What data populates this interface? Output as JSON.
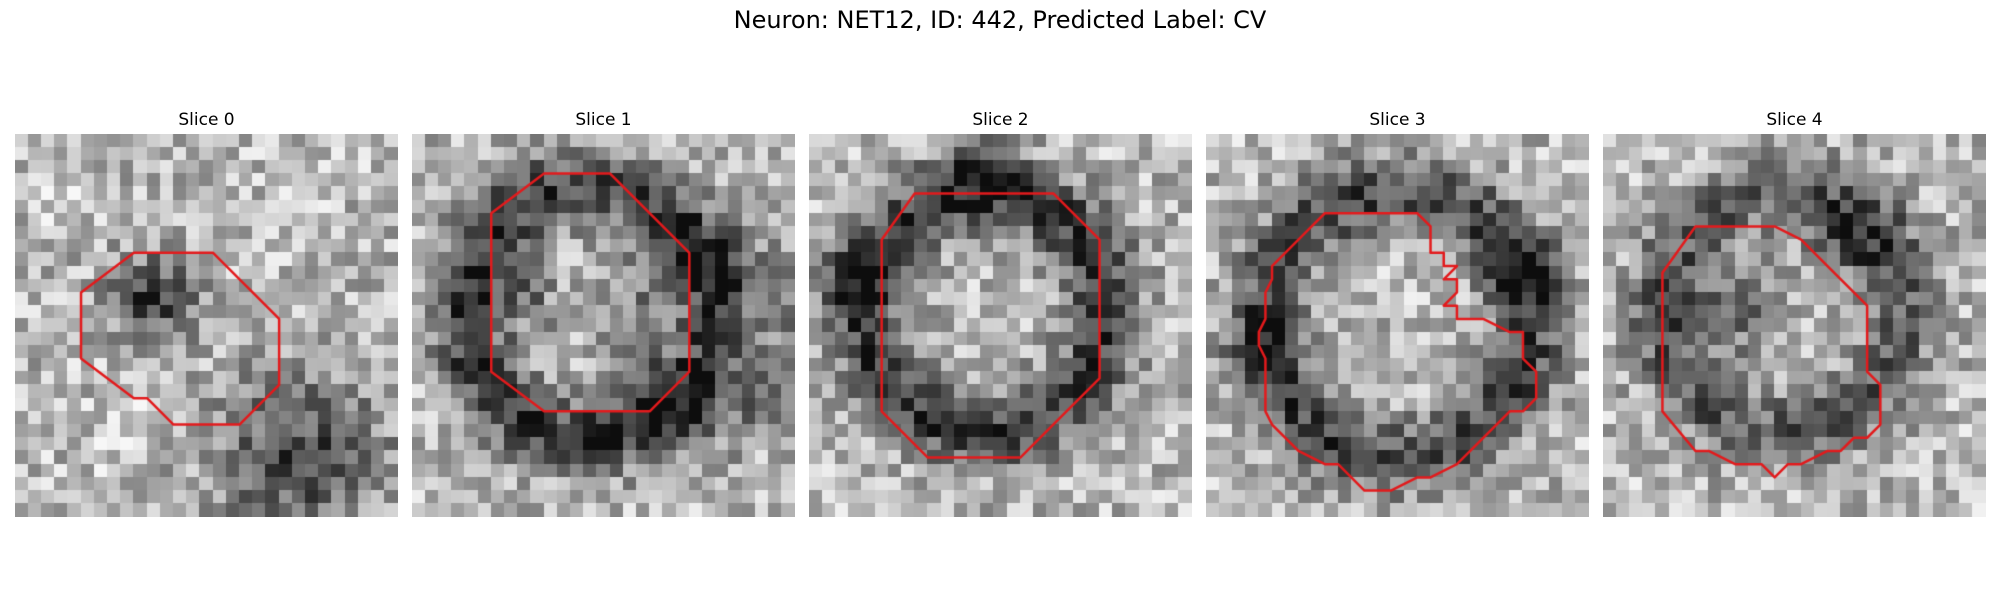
{
  "figure": {
    "suptitle": "Neuron: NET12, ID: 442, Predicted Label: CV"
  },
  "overlay_color": "#e31a1c",
  "panels": [
    {
      "title": "Slice 0",
      "grayscale": "patchy em texture with dark blob upper-left of center and dark region lower-right",
      "contour": "octagon-like red outline over dark vesicle"
    },
    {
      "title": "Slice 1",
      "grayscale": "dark ring with lighter center",
      "contour": "tall octagon red outline"
    },
    {
      "title": "Slice 2",
      "grayscale": "dark ring with lighter textured center",
      "contour": "large octagon red outline"
    },
    {
      "title": "Slice 3",
      "grayscale": "dark ring with lighter center",
      "contour": "irregular jagged red outline"
    },
    {
      "title": "Slice 4",
      "grayscale": "dark diffuse ring",
      "contour": "rounded irregular red outline"
    }
  ]
}
